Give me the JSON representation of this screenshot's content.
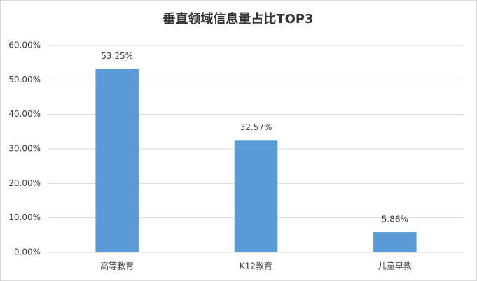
{
  "chart_data": {
    "type": "bar",
    "title": "垂直领域信息量占比TOP3",
    "categories": [
      "高等教育",
      "K12教育",
      "儿童早教"
    ],
    "values": [
      53.25,
      32.57,
      5.86
    ],
    "value_labels": [
      "53.25%",
      "32.57%",
      "5.86%"
    ],
    "color": "#5b9bd5",
    "ylim": [
      0,
      60
    ],
    "yticks": [
      {
        "value": 0,
        "label": "0.00%"
      },
      {
        "value": 10,
        "label": "10.00%"
      },
      {
        "value": 20,
        "label": "20.00%"
      },
      {
        "value": 30,
        "label": "30.00%"
      },
      {
        "value": 40,
        "label": "40.00%"
      },
      {
        "value": 50,
        "label": "50.00%"
      },
      {
        "value": 60,
        "label": "60.00%"
      }
    ],
    "grid": true
  }
}
